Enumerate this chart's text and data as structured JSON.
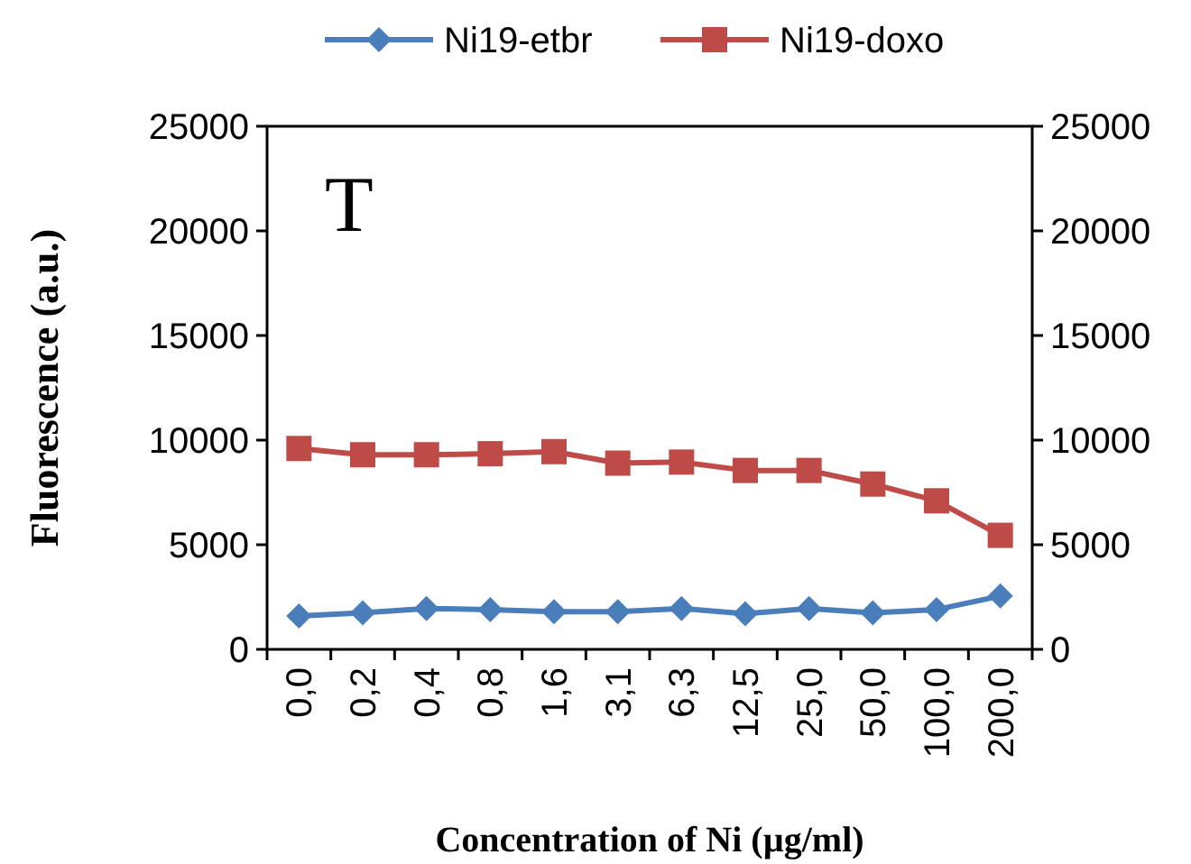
{
  "chart_data": {
    "type": "line",
    "xlabel": "Concentration of  Ni (µg/ml)",
    "ylabel": "Fluorescence (a.u.)",
    "annotations": [
      "T"
    ],
    "categories": [
      "0,0",
      "0,2",
      "0,4",
      "0,8",
      "1,6",
      "3,1",
      "6,3",
      "12,5",
      "25,0",
      "50,0",
      "100,0",
      "200,0"
    ],
    "series": [
      {
        "name": "Ni19-etbr",
        "color": "#4a7ebb",
        "marker": "diamond",
        "values": [
          1600,
          1750,
          1950,
          1900,
          1800,
          1800,
          1950,
          1700,
          1950,
          1750,
          1900,
          2550
        ]
      },
      {
        "name": "Ni19-doxo",
        "color": "#be4b48",
        "marker": "square",
        "values": [
          9600,
          9300,
          9300,
          9350,
          9450,
          8900,
          8950,
          8550,
          8550,
          7900,
          7100,
          5450
        ]
      }
    ],
    "ylim": [
      0,
      25000
    ],
    "yticks": [
      0,
      5000,
      10000,
      15000,
      20000,
      25000
    ],
    "y2lim": [
      0,
      25000
    ],
    "y2ticks": [
      0,
      5000,
      10000,
      15000,
      20000,
      25000
    ],
    "grid": false,
    "legend": "top"
  }
}
